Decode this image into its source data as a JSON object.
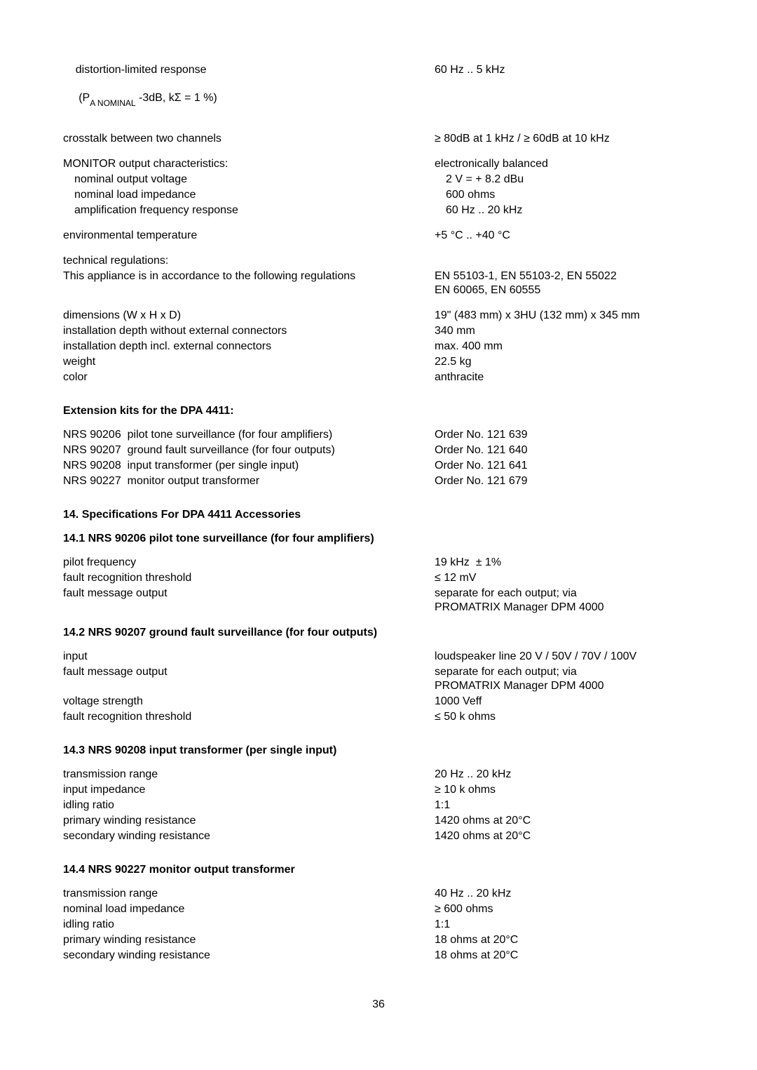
{
  "block1": {
    "l1a": "distortion-limited response",
    "l1b": " (P",
    "l1b_sub": "A NOMINAL",
    "l1c": " -3dB, kΣ = 1 %)",
    "r1": "60 Hz .. 5 kHz",
    "l2": "crosstalk between two channels",
    "r2": "≥ 80dB at 1 kHz / ≥ 60dB at 10 kHz",
    "l3a": "MONITOR output characteristics:",
    "r3a": "electronically balanced",
    "l3b": "nominal output voltage",
    "r3b": "2 V = + 8.2 dBu",
    "l3c": "nominal load impedance",
    "r3c": "600 ohms",
    "l3d": "amplification frequency response",
    "r3d": "60 Hz .. 20 kHz",
    "l4": "environmental temperature",
    "r4": "+5 °C .. +40 °C",
    "l5a": "technical regulations:",
    "l5b": "This appliance is in accordance to the following regulations",
    "r5b": "EN 55103-1, EN 55103-2, EN 55022\nEN 60065, EN 60555",
    "l6a": "dimensions (W x H x D)",
    "r6a": "19\" (483 mm) x 3HU (132 mm) x 345 mm",
    "l6b": "installation depth without external connectors",
    "r6b": "340 mm",
    "l6c": "installation depth incl. external connectors",
    "r6c": "max. 400 mm",
    "l6d": "weight",
    "r6d": "22.5 kg",
    "l6e": "color",
    "r6e": "anthracite"
  },
  "ext_heading": "Extension kits for the DPA 4411:",
  "ext": {
    "l1": "NRS 90206  pilot tone surveillance (for four amplifiers)",
    "r1": "Order No. 121 639",
    "l2": "NRS 90207  ground fault surveillance (for four outputs)",
    "r2": "Order No. 121 640",
    "l3": "NRS 90208  input transformer (per single input)",
    "r3": "Order No. 121 641",
    "l4": "NRS 90227  monitor output transformer",
    "r4": "Order No. 121 679"
  },
  "h14": "14.  Specifications For DPA 4411 Accessories",
  "h14_1": "14.1  NRS 90206  pilot tone surveillance (for four amplifiers)",
  "s14_1": {
    "l1": "pilot frequency",
    "r1": "19 kHz  ± 1%",
    "l2": "fault recognition threshold",
    "r2": "≤ 12 mV",
    "l3": "fault message output",
    "r3": "separate for each output; via\nPROMATRIX Manager DPM 4000"
  },
  "h14_2": "14.2  NRS 90207  ground fault surveillance (for four outputs)",
  "s14_2": {
    "l1": "input",
    "r1": "loudspeaker line 20 V / 50V / 70V / 100V",
    "l2": "fault message output",
    "r2": "separate for each output; via\nPROMATRIX Manager DPM 4000",
    "l3": "voltage strength",
    "r3": "1000 Veff",
    "l4": "fault recognition threshold",
    "r4": "≤ 50 k ohms"
  },
  "h14_3": "14.3  NRS 90208  input transformer (per single input)",
  "s14_3": {
    "l1": "transmission range",
    "r1": "20 Hz .. 20 kHz",
    "l2": "input impedance",
    "r2": "≥ 10 k ohms",
    "l3": "idling ratio",
    "r3": "1:1",
    "l4": "primary winding resistance",
    "r4": "1420 ohms at 20°C",
    "l5": "secondary winding resistance",
    "r5": "1420 ohms at 20°C"
  },
  "h14_4": "14.4  NRS 90227 monitor output transformer",
  "s14_4": {
    "l1": "transmission range",
    "r1": "40 Hz .. 20 kHz",
    "l2": "nominal load impedance",
    "r2": "≥ 600 ohms",
    "l3": "idling ratio",
    "r3": "1:1",
    "l4": "primary winding resistance",
    "r4": "18 ohms at 20°C",
    "l5": "secondary winding resistance",
    "r5": "18 ohms at 20°C"
  },
  "page_number": "36"
}
